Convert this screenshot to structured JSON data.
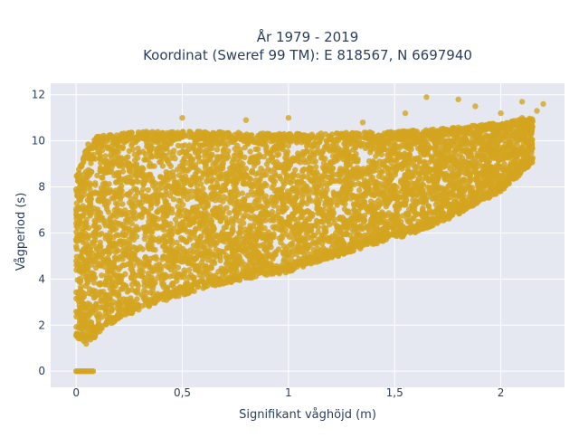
{
  "chart_data": {
    "type": "scatter",
    "title": "År 1979 - 2019",
    "subtitle": "Koordinat (Sweref 99 TM): E 818567, N 6697940",
    "xlabel": "Signifikant våghöjd (m)",
    "ylabel": "Vågperiod (s)",
    "xlim": [
      -0.12,
      2.3
    ],
    "ylim": [
      -0.7,
      12.5
    ],
    "x_ticks": [
      0,
      0.5,
      1,
      1.5,
      2
    ],
    "x_tick_labels": [
      "0",
      "0,5",
      "1",
      "1,5",
      "2"
    ],
    "y_ticks": [
      0,
      2,
      4,
      6,
      8,
      10,
      12
    ],
    "y_tick_labels": [
      "0",
      "2",
      "4",
      "6",
      "8",
      "10",
      "12"
    ],
    "grid": true,
    "legend": "none",
    "point_color": "#d4a420",
    "background_color": "#e5e8f1",
    "series": [
      {
        "values_summary": "dense cloud of observations",
        "upper_envelope": [
          [
            0.0,
            8.5
          ],
          [
            0.05,
            9.8
          ],
          [
            0.1,
            10.2
          ],
          [
            0.3,
            10.4
          ],
          [
            0.6,
            10.4
          ],
          [
            1.0,
            10.3
          ],
          [
            1.5,
            10.4
          ],
          [
            1.8,
            10.6
          ],
          [
            2.0,
            10.8
          ],
          [
            2.15,
            11.0
          ]
        ],
        "lower_envelope": [
          [
            0.0,
            1.4
          ],
          [
            0.05,
            1.1
          ],
          [
            0.1,
            1.6
          ],
          [
            0.2,
            2.3
          ],
          [
            0.4,
            3.0
          ],
          [
            0.6,
            3.6
          ],
          [
            0.8,
            4.0
          ],
          [
            1.0,
            4.3
          ],
          [
            1.2,
            4.9
          ],
          [
            1.4,
            5.5
          ],
          [
            1.6,
            6.0
          ],
          [
            1.8,
            6.8
          ],
          [
            2.0,
            7.8
          ],
          [
            2.15,
            9.0
          ]
        ],
        "outliers": [
          [
            0.5,
            11.0
          ],
          [
            0.8,
            10.9
          ],
          [
            1.0,
            11.0
          ],
          [
            1.35,
            10.8
          ],
          [
            1.65,
            11.9
          ],
          [
            1.8,
            11.8
          ],
          [
            1.88,
            11.5
          ],
          [
            2.1,
            11.7
          ],
          [
            2.2,
            11.6
          ],
          [
            2.0,
            11.2
          ],
          [
            1.55,
            11.2
          ],
          [
            2.17,
            11.3
          ],
          [
            2.1,
            11.0
          ]
        ],
        "zero_period_range": [
          0.0,
          0.08
        ]
      }
    ]
  }
}
